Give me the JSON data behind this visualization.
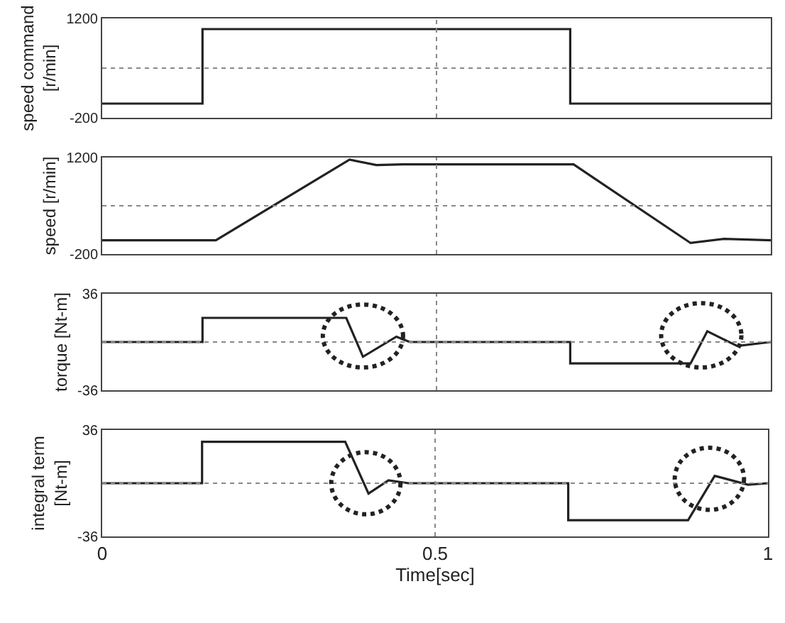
{
  "chart_data": [
    {
      "type": "line",
      "ylabel": "speed command\n[r/min]",
      "x": [
        0,
        0.15,
        0.15,
        0.7,
        0.7,
        1
      ],
      "series": [
        {
          "color": "#222222",
          "values": [
            0,
            0,
            1050,
            1050,
            0,
            0
          ]
        }
      ],
      "xlim": [
        0,
        1
      ],
      "ylim": [
        -200,
        1200
      ],
      "yticks": [
        -200,
        1200
      ],
      "tick_labels": "y",
      "ref_lines": [
        {
          "axis": "y",
          "value": 500,
          "line_style": "dotted",
          "color": "#888888"
        },
        {
          "axis": "x",
          "value": 0.5,
          "line_style": "dotted",
          "color": "#888888"
        }
      ]
    },
    {
      "type": "line",
      "ylabel": "speed [r/min]",
      "x": [
        0,
        0.1,
        0.17,
        0.37,
        0.41,
        0.45,
        0.6,
        0.705,
        0.88,
        0.93,
        1
      ],
      "series": [
        {
          "color": "#222222",
          "values": [
            0,
            0,
            0,
            1170,
            1090,
            1100,
            1100,
            1100,
            -40,
            20,
            0
          ]
        }
      ],
      "xlim": [
        0,
        1
      ],
      "ylim": [
        -200,
        1200
      ],
      "yticks": [
        -200,
        1200
      ],
      "tick_labels": "y",
      "ref_lines": [
        {
          "axis": "y",
          "value": 500,
          "line_style": "dotted",
          "color": "#888888"
        },
        {
          "axis": "x",
          "value": 0.5,
          "line_style": "dotted",
          "color": "#888888"
        }
      ]
    },
    {
      "type": "line",
      "ylabel": "torque [Nt-m]",
      "x": [
        0,
        0.15,
        0.15,
        0.365,
        0.39,
        0.44,
        0.46,
        0.7,
        0.7,
        0.88,
        0.905,
        0.95,
        1
      ],
      "series": [
        {
          "color": "#222222",
          "values": [
            0,
            0,
            18,
            18,
            -11,
            4,
            0,
            0,
            -16,
            -16,
            8,
            -3,
            0
          ]
        }
      ],
      "xlim": [
        0,
        1
      ],
      "ylim": [
        -36,
        36
      ],
      "yticks": [
        -36,
        36
      ],
      "tick_labels": "y",
      "ref_lines": [
        {
          "axis": "y",
          "value": 0,
          "line_style": "dotted",
          "color": "#888888"
        },
        {
          "axis": "x",
          "value": 0.5,
          "line_style": "dotted",
          "color": "#888888"
        }
      ]
    },
    {
      "type": "line",
      "ylabel": "integral term\n[Nt-m]",
      "xlabel": "Time[sec]",
      "x": [
        0,
        0.15,
        0.15,
        0.365,
        0.4,
        0.43,
        0.46,
        0.7,
        0.7,
        0.88,
        0.92,
        0.97,
        1
      ],
      "series": [
        {
          "color": "#222222",
          "values": [
            0,
            0,
            28,
            28,
            -7,
            2,
            0,
            0,
            -25,
            -25,
            5,
            -1,
            0
          ]
        }
      ],
      "xlim": [
        0,
        1
      ],
      "xticks": [
        0,
        0.5,
        1
      ],
      "ylim": [
        -36,
        36
      ],
      "yticks": [
        -36,
        36
      ],
      "ref_lines": [
        {
          "axis": "y",
          "value": 0,
          "line_style": "dotted",
          "color": "#888888"
        },
        {
          "axis": "x",
          "value": 0.5,
          "line_style": "dotted",
          "color": "#888888"
        }
      ]
    }
  ]
}
